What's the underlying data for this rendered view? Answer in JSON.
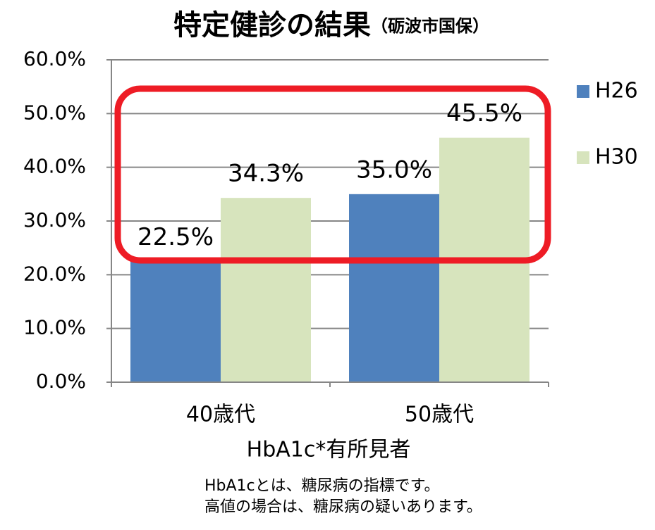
{
  "chart_data": {
    "type": "bar",
    "title": "特定健診の結果",
    "subtitle": "（砺波市国保）",
    "x_label": "HbA1c*有所見者",
    "annotations": [
      "HbA1cとは、糖尿病の指標です。",
      "高値の場合は、糖尿病の疑いあります。"
    ],
    "categories": [
      "40歳代",
      "50歳代"
    ],
    "series": [
      {
        "name": "H26",
        "color": "#4f81bd",
        "values": [
          22.5,
          35.0
        ],
        "value_labels": [
          "22.5%",
          "35.0%"
        ]
      },
      {
        "name": "H30",
        "color": "#d7e4bd",
        "values": [
          34.3,
          45.5
        ],
        "value_labels": [
          "34.3%",
          "45.5%"
        ]
      }
    ],
    "ylim": [
      0,
      60
    ],
    "yticks": [
      {
        "value": 0,
        "label": "0.0%"
      },
      {
        "value": 10,
        "label": "10.0%"
      },
      {
        "value": 20,
        "label": "20.0%"
      },
      {
        "value": 30,
        "label": "30.0%"
      },
      {
        "value": 40,
        "label": "40.0%"
      },
      {
        "value": 50,
        "label": "50.0%"
      },
      {
        "value": 60,
        "label": "60.0%"
      }
    ],
    "grid": true,
    "legend": "right"
  }
}
